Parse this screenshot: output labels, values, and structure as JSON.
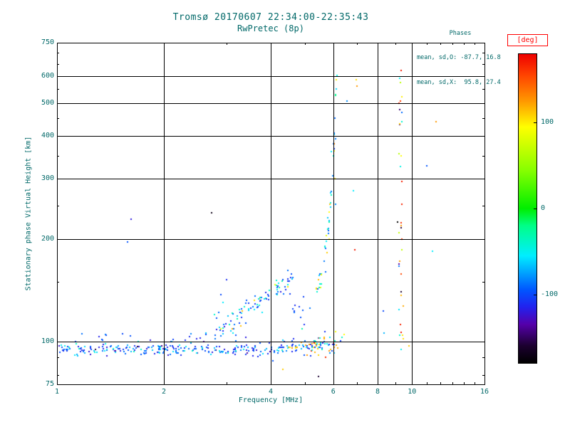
{
  "chart_data": {
    "type": "scatter",
    "title": "Tromsø 20170607 22:34:00-22:35:43",
    "subtitle": "RwPretec (8p)",
    "xlabel": "Frequency [MHz]",
    "ylabel": "Stationary phase Virtual Height [km]",
    "xscale": "log",
    "yscale": "log",
    "xlim": [
      1,
      16
    ],
    "ylim": [
      75,
      750
    ],
    "grid": true,
    "annotations": {
      "heading": "Phases",
      "mean_sd_O": "mean, sd,O: -87.7, 16.8",
      "mean_sd_X": "mean, sd,X:  95.8, 27.4"
    },
    "xticks": [
      {
        "v": 1,
        "label": "1",
        "grid": false
      },
      {
        "v": 2,
        "label": "2",
        "grid": true
      },
      {
        "v": 4,
        "label": "4",
        "grid": true
      },
      {
        "v": 6,
        "label": "6",
        "grid": true
      },
      {
        "v": 8,
        "label": "8",
        "grid": true
      },
      {
        "v": 10,
        "label": "10",
        "grid": true
      },
      {
        "v": 16,
        "label": "16",
        "grid": false
      }
    ],
    "xminor": [
      3,
      5,
      7,
      9,
      11,
      12,
      13,
      14,
      15
    ],
    "yticks": [
      {
        "v": 75,
        "label": "75",
        "grid": false
      },
      {
        "v": 100,
        "label": "100",
        "grid": true
      },
      {
        "v": 200,
        "label": "200",
        "grid": true
      },
      {
        "v": 300,
        "label": "300",
        "grid": true
      },
      {
        "v": 400,
        "label": "400",
        "grid": true
      },
      {
        "v": 500,
        "label": "500",
        "grid": true
      },
      {
        "v": 600,
        "label": "600",
        "grid": true
      },
      {
        "v": 750,
        "label": "750",
        "grid": false
      }
    ],
    "yminor": [
      80,
      90,
      150,
      250,
      350,
      450,
      550,
      650,
      700
    ],
    "colorbar": {
      "label": "[deg]",
      "range": [
        -180,
        180
      ],
      "ticks": [
        100,
        0,
        -100
      ],
      "stops": [
        {
          "d": -180,
          "c": "#000000"
        },
        {
          "d": -160,
          "c": "#1c0030"
        },
        {
          "d": -135,
          "c": "#5500aa"
        },
        {
          "d": -115,
          "c": "#2222ee"
        },
        {
          "d": -95,
          "c": "#0055ff"
        },
        {
          "d": -55,
          "c": "#00eeff"
        },
        {
          "d": -20,
          "c": "#00ff88"
        },
        {
          "d": 0,
          "c": "#00ee00"
        },
        {
          "d": 45,
          "c": "#88ff00"
        },
        {
          "d": 95,
          "c": "#ffff00"
        },
        {
          "d": 125,
          "c": "#ff9900"
        },
        {
          "d": 155,
          "c": "#ff4400"
        },
        {
          "d": 180,
          "c": "#ee0000"
        }
      ]
    },
    "seed": 20170607,
    "clusters": [
      {
        "name": "e-region-band-low",
        "type": "band",
        "n": 230,
        "fmin": 1.0,
        "fmax": 4.2,
        "hmean": 95,
        "hsd": 2.0,
        "deg_groups": [
          {
            "w": 0.7,
            "min": -125,
            "max": -85
          },
          {
            "w": 0.27,
            "min": -75,
            "max": -35
          },
          {
            "w": 0.03,
            "min": -160,
            "max": -130
          }
        ]
      },
      {
        "name": "e-region-band-high",
        "type": "band",
        "n": 85,
        "fmin": 4.2,
        "fmax": 6.05,
        "hmean": 96,
        "hsd": 2.5,
        "deg_groups": [
          {
            "w": 0.5,
            "min": -120,
            "max": -80
          },
          {
            "w": 0.25,
            "min": -70,
            "max": -30
          },
          {
            "w": 0.2,
            "min": 85,
            "max": 130
          },
          {
            "w": 0.05,
            "min": 150,
            "max": 175
          }
        ]
      },
      {
        "name": "e-region-upper-scatter",
        "type": "band",
        "n": 22,
        "fmin": 1.15,
        "fmax": 4.0,
        "hmean": 104,
        "hsd": 3.5,
        "deg_groups": [
          {
            "w": 0.8,
            "min": -120,
            "max": -80
          },
          {
            "w": 0.2,
            "min": -70,
            "max": -40
          }
        ]
      },
      {
        "name": "f-layer-trace",
        "type": "power",
        "n": 95,
        "fmin": 2.78,
        "fmax": 4.62,
        "h0": 106,
        "f0": 2.78,
        "k": 0.72,
        "hjitter": 4.5,
        "deg_groups": [
          {
            "w": 0.6,
            "min": -120,
            "max": -85
          },
          {
            "w": 0.35,
            "min": -70,
            "max": -30
          },
          {
            "w": 0.05,
            "min": 85,
            "max": 120
          }
        ]
      },
      {
        "name": "trace-gap-scatter",
        "type": "band",
        "n": 12,
        "fmin": 4.6,
        "fmax": 5.3,
        "hmean": 120,
        "hsd": 9,
        "deg_groups": [
          {
            "w": 0.7,
            "min": -115,
            "max": -80
          },
          {
            "w": 0.3,
            "min": -70,
            "max": -30
          }
        ]
      },
      {
        "name": "critical-frequency-asymptote",
        "type": "asymptote",
        "n": 48,
        "fmin": 5.35,
        "fmax": 6.15,
        "h0": 145,
        "h1": 620,
        "p": 2.4,
        "deg_groups": [
          {
            "w": 0.4,
            "min": -110,
            "max": -60
          },
          {
            "w": 0.3,
            "min": -55,
            "max": -15
          },
          {
            "w": 0.3,
            "min": 80,
            "max": 140
          }
        ]
      },
      {
        "name": "x-mode-near-6mhz",
        "type": "band",
        "n": 20,
        "fmin": 5.35,
        "fmax": 6.45,
        "hmean": 101,
        "hsd": 3,
        "deg_groups": [
          {
            "w": 0.45,
            "min": 85,
            "max": 135
          },
          {
            "w": 0.3,
            "min": -60,
            "max": -20
          },
          {
            "w": 0.25,
            "min": -110,
            "max": -80
          }
        ]
      },
      {
        "name": "interference-column-9mhz",
        "type": "column",
        "n": 34,
        "f": 9.3,
        "fjitter": 0.07,
        "hmin": 80,
        "hmax": 630,
        "deg_groups": [
          {
            "w": 0.35,
            "min": -105,
            "max": -40
          },
          {
            "w": 0.3,
            "min": 60,
            "max": 140
          },
          {
            "w": 0.2,
            "min": -180,
            "max": -135
          },
          {
            "w": 0.15,
            "min": 145,
            "max": 180
          }
        ]
      }
    ],
    "points_extra": [
      [
        1.62,
        228,
        -120
      ],
      [
        1.58,
        196,
        -95
      ],
      [
        2.72,
        238,
        -170
      ],
      [
        2.9,
        137,
        -100
      ],
      [
        2.94,
        130,
        -55
      ],
      [
        3.0,
        152,
        -110
      ],
      [
        2.86,
        122,
        -90
      ],
      [
        4.33,
        83,
        110
      ],
      [
        5.44,
        79,
        -160
      ],
      [
        4.05,
        88,
        -95
      ],
      [
        5.75,
        182,
        110
      ],
      [
        5.85,
        200,
        95
      ],
      [
        5.9,
        255,
        -45
      ],
      [
        5.92,
        360,
        -55
      ],
      [
        6.05,
        300,
        100
      ],
      [
        6.1,
        252,
        -80
      ],
      [
        5.7,
        160,
        -90
      ],
      [
        6.55,
        505,
        -80
      ],
      [
        6.95,
        585,
        105
      ],
      [
        7.0,
        560,
        125
      ],
      [
        6.9,
        186,
        170
      ],
      [
        6.85,
        277,
        -55
      ],
      [
        8.3,
        123,
        -100
      ],
      [
        8.35,
        106,
        -70
      ],
      [
        9.3,
        622,
        170
      ],
      [
        9.25,
        590,
        -50
      ],
      [
        9.35,
        520,
        100
      ],
      [
        9.8,
        97,
        110
      ],
      [
        11.0,
        327,
        -95
      ],
      [
        11.4,
        184,
        -55
      ],
      [
        11.7,
        440,
        125
      ]
    ]
  },
  "colors": {
    "text": "#006868",
    "axis": "#000000",
    "background": "#ffffff",
    "colorbar_label": "#ff0000"
  }
}
